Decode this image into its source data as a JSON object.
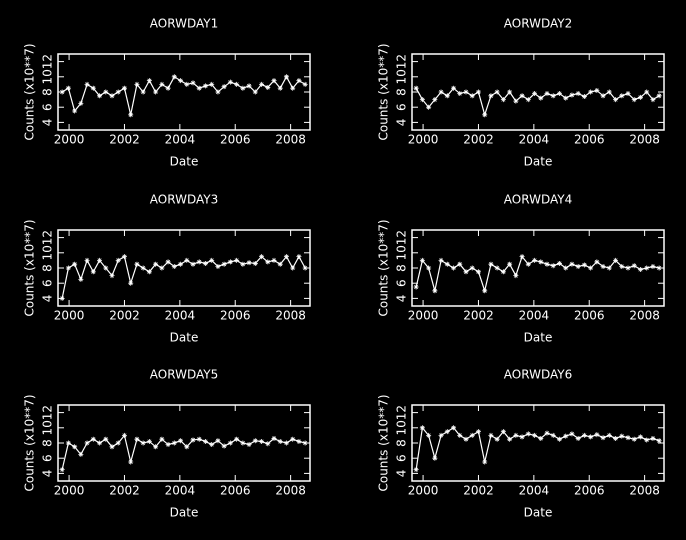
{
  "chart_data": [
    {
      "type": "line",
      "title": "AORWDAY1",
      "xlabel": "Date",
      "ylabel": "Counts (x10**7)",
      "color": "#ffffff",
      "x": [
        1999.75,
        1999.975,
        2000.2,
        2000.425,
        2000.65,
        2000.875,
        2001.1,
        2001.325,
        2001.55,
        2001.775,
        2002.0,
        2002.225,
        2002.45,
        2002.675,
        2002.9,
        2003.125,
        2003.35,
        2003.575,
        2003.8,
        2004.025,
        2004.25,
        2004.475,
        2004.7,
        2004.925,
        2005.15,
        2005.375,
        2005.6,
        2005.825,
        2006.05,
        2006.275,
        2006.5,
        2006.725,
        2006.95,
        2007.175,
        2007.4,
        2007.625,
        2007.85,
        2008.075,
        2008.3,
        2008.525
      ],
      "values": [
        8,
        8.5,
        5.5,
        6.5,
        9,
        8.5,
        7.5,
        8,
        7.5,
        8,
        8.5,
        5,
        9,
        8,
        9.5,
        8,
        9,
        8.5,
        10,
        9.5,
        9,
        9.2,
        8.5,
        8.8,
        9,
        8,
        8.7,
        9.3,
        9,
        8.5,
        8.8,
        8,
        9,
        8.6,
        9.5,
        8.5,
        10,
        8.5,
        9.5,
        9
      ],
      "xlim": [
        1999.6,
        2008.7
      ],
      "xticks": [
        2000,
        2002,
        2004,
        2006,
        2008
      ],
      "ylim": [
        3,
        13
      ],
      "yticks": [
        4,
        6,
        8,
        10,
        12
      ]
    },
    {
      "type": "line",
      "title": "AORWDAY2",
      "xlabel": "Date",
      "ylabel": "Counts (x10**7)",
      "color": "#ffffff",
      "x": [
        1999.75,
        1999.975,
        2000.2,
        2000.425,
        2000.65,
        2000.875,
        2001.1,
        2001.325,
        2001.55,
        2001.775,
        2002.0,
        2002.225,
        2002.45,
        2002.675,
        2002.9,
        2003.125,
        2003.35,
        2003.575,
        2003.8,
        2004.025,
        2004.25,
        2004.475,
        2004.7,
        2004.925,
        2005.15,
        2005.375,
        2005.6,
        2005.825,
        2006.05,
        2006.275,
        2006.5,
        2006.725,
        2006.95,
        2007.175,
        2007.4,
        2007.625,
        2007.85,
        2008.075,
        2008.3,
        2008.525
      ],
      "values": [
        8.5,
        7,
        6,
        7,
        8,
        7.5,
        8.5,
        7.8,
        8,
        7.5,
        8,
        5,
        7.5,
        8,
        7,
        8,
        6.8,
        7.5,
        7,
        7.8,
        7.2,
        7.8,
        7.5,
        7.8,
        7.2,
        7.6,
        7.8,
        7.4,
        8,
        8.2,
        7.5,
        8,
        7,
        7.5,
        7.8,
        7,
        7.3,
        8,
        7,
        7.5
      ],
      "xlim": [
        1999.6,
        2008.7
      ],
      "xticks": [
        2000,
        2002,
        2004,
        2006,
        2008
      ],
      "ylim": [
        3,
        13
      ],
      "yticks": [
        4,
        6,
        8,
        10,
        12
      ]
    },
    {
      "type": "line",
      "title": "AORWDAY3",
      "xlabel": "Date",
      "ylabel": "Counts (x10**7)",
      "color": "#ffffff",
      "x": [
        1999.75,
        1999.975,
        2000.2,
        2000.425,
        2000.65,
        2000.875,
        2001.1,
        2001.325,
        2001.55,
        2001.775,
        2002.0,
        2002.225,
        2002.45,
        2002.675,
        2002.9,
        2003.125,
        2003.35,
        2003.575,
        2003.8,
        2004.025,
        2004.25,
        2004.475,
        2004.7,
        2004.925,
        2005.15,
        2005.375,
        2005.6,
        2005.825,
        2006.05,
        2006.275,
        2006.5,
        2006.725,
        2006.95,
        2007.175,
        2007.4,
        2007.625,
        2007.85,
        2008.075,
        2008.3,
        2008.525
      ],
      "values": [
        4,
        8,
        8.5,
        6.5,
        9,
        7.5,
        9,
        8,
        7,
        9,
        9.5,
        6,
        8.5,
        8,
        7.5,
        8.5,
        8,
        8.8,
        8.2,
        8.5,
        9,
        8.5,
        8.8,
        8.6,
        9,
        8.2,
        8.5,
        8.8,
        9,
        8.5,
        8.7,
        8.6,
        9.5,
        8.8,
        9,
        8.5,
        9.5,
        8,
        9.5,
        8
      ],
      "xlim": [
        1999.6,
        2008.7
      ],
      "xticks": [
        2000,
        2002,
        2004,
        2006,
        2008
      ],
      "ylim": [
        3,
        13
      ],
      "yticks": [
        4,
        6,
        8,
        10,
        12
      ]
    },
    {
      "type": "line",
      "title": "AORWDAY4",
      "xlabel": "Date",
      "ylabel": "Counts (x10**7)",
      "color": "#ffffff",
      "x": [
        1999.75,
        1999.975,
        2000.2,
        2000.425,
        2000.65,
        2000.875,
        2001.1,
        2001.325,
        2001.55,
        2001.775,
        2002.0,
        2002.225,
        2002.45,
        2002.675,
        2002.9,
        2003.125,
        2003.35,
        2003.575,
        2003.8,
        2004.025,
        2004.25,
        2004.475,
        2004.7,
        2004.925,
        2005.15,
        2005.375,
        2005.6,
        2005.825,
        2006.05,
        2006.275,
        2006.5,
        2006.725,
        2006.95,
        2007.175,
        2007.4,
        2007.625,
        2007.85,
        2008.075,
        2008.3,
        2008.525
      ],
      "values": [
        5.5,
        9,
        8,
        5,
        9,
        8.5,
        8,
        8.5,
        7.5,
        8,
        7.5,
        5,
        8.5,
        8,
        7.5,
        8.5,
        7,
        9.5,
        8.5,
        9,
        8.8,
        8.5,
        8.3,
        8.6,
        8,
        8.5,
        8.2,
        8.4,
        8,
        8.8,
        8.2,
        8,
        9,
        8.2,
        8,
        8.3,
        7.8,
        8,
        8.2,
        8
      ],
      "xlim": [
        1999.6,
        2008.7
      ],
      "xticks": [
        2000,
        2002,
        2004,
        2006,
        2008
      ],
      "ylim": [
        3,
        13
      ],
      "yticks": [
        4,
        6,
        8,
        10,
        12
      ]
    },
    {
      "type": "line",
      "title": "AORWDAY5",
      "xlabel": "Date",
      "ylabel": "Counts (x10**7)",
      "color": "#ffffff",
      "x": [
        1999.75,
        1999.975,
        2000.2,
        2000.425,
        2000.65,
        2000.875,
        2001.1,
        2001.325,
        2001.55,
        2001.775,
        2002.0,
        2002.225,
        2002.45,
        2002.675,
        2002.9,
        2003.125,
        2003.35,
        2003.575,
        2003.8,
        2004.025,
        2004.25,
        2004.475,
        2004.7,
        2004.925,
        2005.15,
        2005.375,
        2005.6,
        2005.825,
        2006.05,
        2006.275,
        2006.5,
        2006.725,
        2006.95,
        2007.175,
        2007.4,
        2007.625,
        2007.85,
        2008.075,
        2008.3,
        2008.525
      ],
      "values": [
        4.5,
        8,
        7.5,
        6.5,
        8,
        8.5,
        8,
        8.5,
        7.5,
        8,
        9,
        5.5,
        8.5,
        8,
        8.2,
        7.5,
        8.5,
        7.8,
        8,
        8.3,
        7.5,
        8.4,
        8.5,
        8.2,
        7.8,
        8.3,
        7.6,
        8,
        8.5,
        8,
        7.8,
        8.3,
        8.2,
        7.9,
        8.6,
        8.2,
        8,
        8.5,
        8.2,
        8
      ],
      "xlim": [
        1999.6,
        2008.7
      ],
      "xticks": [
        2000,
        2002,
        2004,
        2006,
        2008
      ],
      "ylim": [
        3,
        13
      ],
      "yticks": [
        4,
        6,
        8,
        10,
        12
      ]
    },
    {
      "type": "line",
      "title": "AORWDAY6",
      "xlabel": "Date",
      "ylabel": "Counts (x10**7)",
      "color": "#ffffff",
      "x": [
        1999.75,
        1999.975,
        2000.2,
        2000.425,
        2000.65,
        2000.875,
        2001.1,
        2001.325,
        2001.55,
        2001.775,
        2002.0,
        2002.225,
        2002.45,
        2002.675,
        2002.9,
        2003.125,
        2003.35,
        2003.575,
        2003.8,
        2004.025,
        2004.25,
        2004.475,
        2004.7,
        2004.925,
        2005.15,
        2005.375,
        2005.6,
        2005.825,
        2006.05,
        2006.275,
        2006.5,
        2006.725,
        2006.95,
        2007.175,
        2007.4,
        2007.625,
        2007.85,
        2008.075,
        2008.3,
        2008.525
      ],
      "values": [
        4.5,
        10,
        9,
        6,
        9,
        9.5,
        10,
        9,
        8.5,
        9,
        9.5,
        5.5,
        9,
        8.5,
        9.5,
        8.5,
        9,
        8.8,
        9.2,
        9,
        8.6,
        9.3,
        9,
        8.5,
        8.9,
        9.2,
        8.6,
        9,
        8.8,
        9.1,
        8.7,
        9,
        8.6,
        8.9,
        8.7,
        8.5,
        8.8,
        8.4,
        8.6,
        8.3
      ],
      "xlim": [
        1999.6,
        2008.7
      ],
      "xticks": [
        2000,
        2002,
        2004,
        2006,
        2008
      ],
      "ylim": [
        3,
        13
      ],
      "yticks": [
        4,
        6,
        8,
        10,
        12
      ]
    }
  ]
}
